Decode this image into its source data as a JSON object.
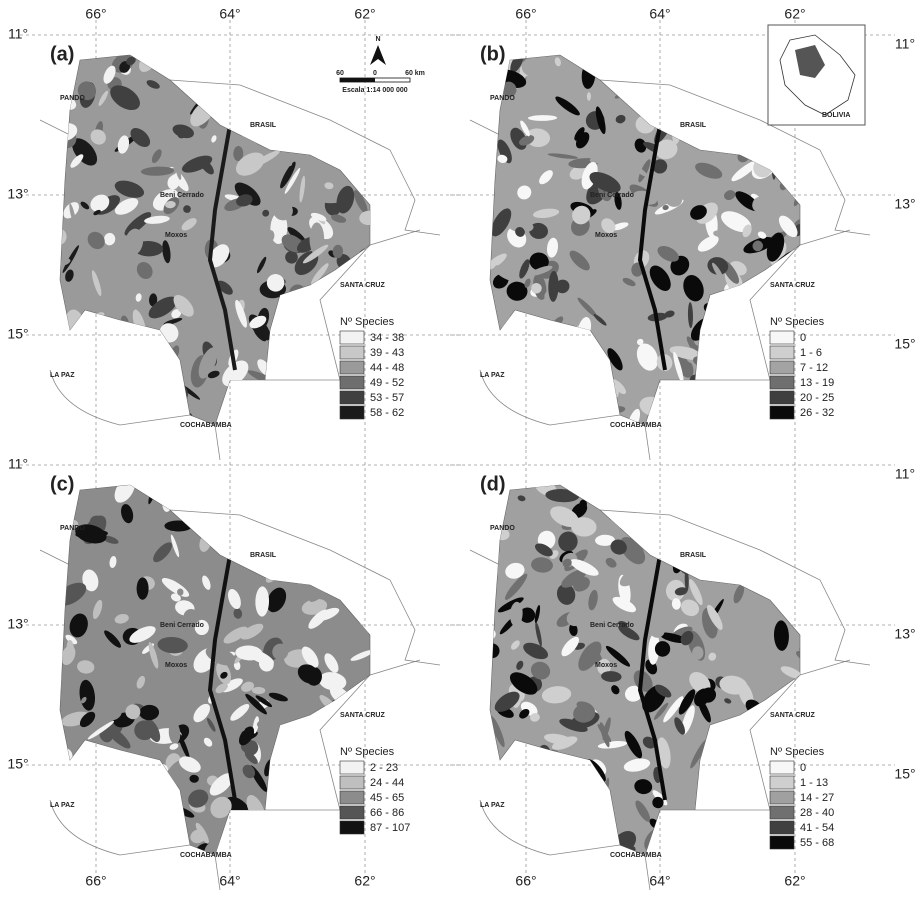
{
  "longitude_labels": [
    "66°",
    "64°",
    "62°"
  ],
  "latitude_labels": [
    "11°",
    "13°",
    "15°"
  ],
  "panels": [
    {
      "label": "(a)",
      "legend": {
        "title": "Nº Species",
        "entries": [
          "34 - 38",
          "39 - 43",
          "44 - 48",
          "49 - 52",
          "53 - 57",
          "58 - 62"
        ],
        "colors": [
          "#f2f2f2",
          "#c8c8c8",
          "#9a9a9a",
          "#6e6e6e",
          "#404040",
          "#1a1a1a"
        ]
      }
    },
    {
      "label": "(b)",
      "legend": {
        "title": "Nº Species",
        "entries": [
          "0",
          "1 - 6",
          "7 - 12",
          "13 - 19",
          "20 - 25",
          "26 - 32"
        ],
        "colors": [
          "#f7f7f7",
          "#cfcfcf",
          "#a3a3a3",
          "#6f6f6f",
          "#3f3f3f",
          "#0a0a0a"
        ]
      }
    },
    {
      "label": "(c)",
      "legend": {
        "title": "Nº Species",
        "entries": [
          "2 - 23",
          "24 - 44",
          "45 - 65",
          "66 - 86",
          "87 - 107"
        ],
        "colors": [
          "#f2f2f2",
          "#bfbfbf",
          "#8c8c8c",
          "#555555",
          "#111111"
        ]
      }
    },
    {
      "label": "(d)",
      "legend": {
        "title": "Nº Species",
        "entries": [
          "0",
          "1 - 13",
          "14 - 27",
          "28 - 40",
          "41 - 54",
          "55 - 68"
        ],
        "colors": [
          "#f7f7f7",
          "#cfcfcf",
          "#a0a0a0",
          "#707070",
          "#404040",
          "#0a0a0a"
        ]
      }
    }
  ],
  "places": {
    "pando": "PANDO",
    "brasil": "BRASIL",
    "santa_cruz": "SANTA CRUZ",
    "la_paz": "LA PAZ",
    "cochabamba": "COCHABAMBA",
    "beni_cerrado": "Beni Cerrado",
    "moxos": "Moxos"
  },
  "scale_bar": {
    "north": "N",
    "ticks": [
      "60",
      "0",
      "60 km"
    ],
    "caption": "Escala 1:14 000 000"
  },
  "inset": {
    "label": "BOLIVIA"
  }
}
